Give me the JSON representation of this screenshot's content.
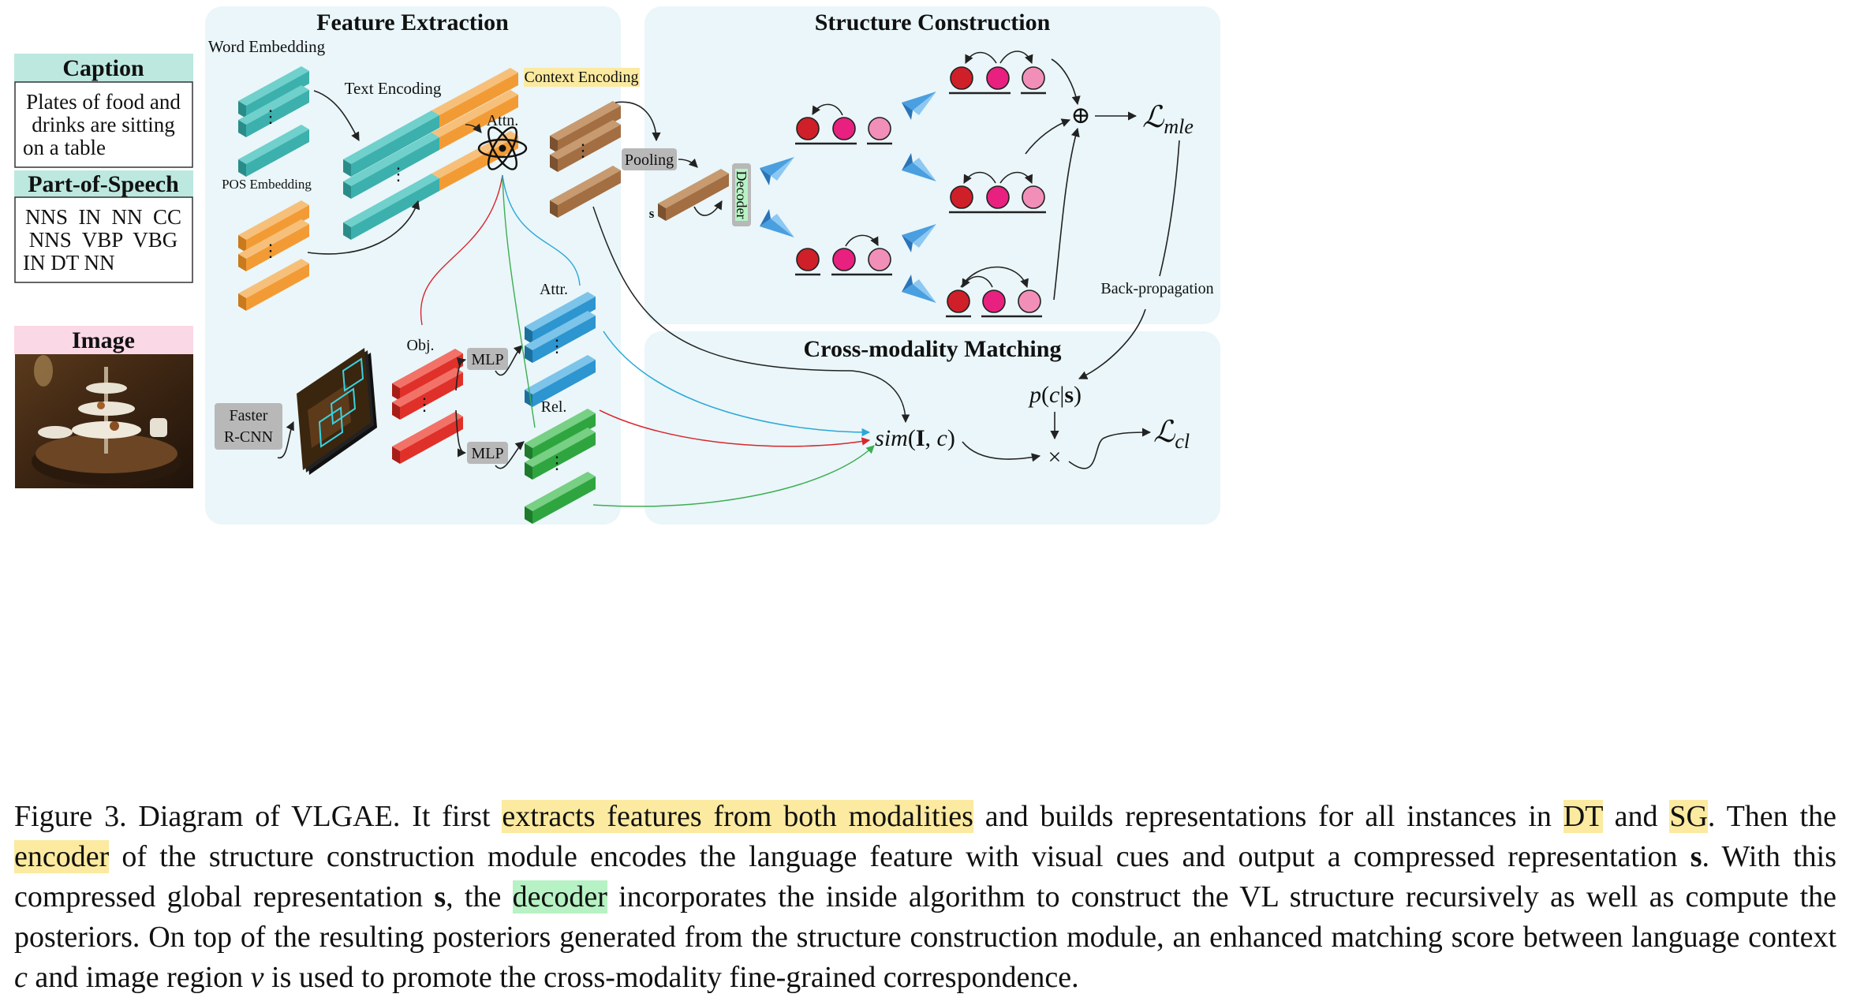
{
  "panels": {
    "caption_box": {
      "title": "Caption",
      "text": [
        "Plates of food and",
        "drinks are sitting",
        "on a table"
      ]
    },
    "pos_box": {
      "title": "Part-of-Speech",
      "text": [
        "NNS  IN  NN  CC",
        "NNS  VBP  VBG",
        "IN DT NN"
      ]
    },
    "image_box": {
      "title": "Image"
    }
  },
  "sections": {
    "feature_extraction": "Feature Extraction",
    "structure_construction": "Structure Construction",
    "cross_modality": "Cross-modality Matching"
  },
  "labels": {
    "word_embedding": "Word Embedding",
    "text_encoding": "Text Encoding",
    "pos_embedding": "POS Embedding",
    "attn": "Attn.",
    "context_encoding": "Context Encoding",
    "pooling": "Pooling",
    "s": "s",
    "decoder": "Decoder",
    "obj": "Obj.",
    "attr": "Attr.",
    "rel": "Rel.",
    "mlp": "MLP",
    "faster": "Faster",
    "rcnn": "R-CNN",
    "back_propagation": "Back-propagation",
    "dots": "⋮",
    "oplus": "⊕",
    "times": "×"
  },
  "math": {
    "l_mle": {
      "main": "ℒ",
      "sub": "mle"
    },
    "l_cl": {
      "main": "ℒ",
      "sub": "cl"
    },
    "sim": {
      "fn": "sim",
      "open": "(",
      "I": "I",
      "sep": ", ",
      "c": "c",
      "close": ")"
    },
    "posterior": {
      "p": "p",
      "open": "(",
      "c": "c",
      "bar": "|",
      "s": "s",
      "close": ")"
    }
  },
  "figure_caption": {
    "p1": "Figure 3. Diagram of VLGAE. It first ",
    "h1": "extracts features from both modalities",
    "p2": " and builds representations for all instances in ",
    "h2": "DT",
    "p3": " and ",
    "h3": "SG",
    "p4": ". Then the ",
    "h4": "encoder",
    "p5": " of the structure construction module encodes the language feature with visual cues and output a compressed representation ",
    "s1": "s",
    "p6": ". With this compressed global representation ",
    "s2": "s",
    "p7": ", the ",
    "h5": "decoder",
    "p8": " incorporates the inside algorithm to construct the VL structure recursively as well as compute the posteriors. On top of the resulting posteriors generated from the structure construction module, an enhanced matching score between language context ",
    "c": "c",
    "p9": " and image region ",
    "v": "v",
    "p10": " is used to promote the cross-modality fine-grained correspondence."
  },
  "colors": {
    "panel_bg": "#eaf6f9",
    "caption_header": "#bde8df",
    "image_header": "#fbd8e6",
    "teal": "#3cb0ad",
    "orange": "#f29b35",
    "brown": "#a26e42",
    "red": "#e0302a",
    "blue": "#2d95cf",
    "green": "#2fa540",
    "node_red": "#cf1f28",
    "node_magenta": "#e8207f",
    "node_pink": "#f28fb8",
    "highlight_yellow": "#fbeaa0",
    "highlight_green": "#b7f2c4"
  }
}
